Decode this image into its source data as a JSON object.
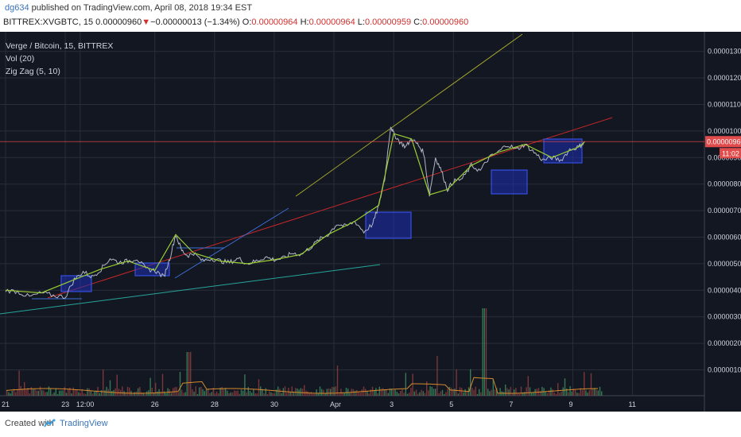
{
  "header": {
    "user": "dg634",
    "published": "published on TradingView.com, April 08, 2018 19:34 EST",
    "symbol": "BITTREX:XVGBTC, 15",
    "last": "0.00000960",
    "change_arrow": "▼",
    "change": "−0.00000013 (−1.34%)",
    "o_label": "O:",
    "o_value": "0.00000964",
    "h_label": "H:",
    "h_value": "0.00000964",
    "l_label": "L:",
    "l_value": "0.00000959",
    "c_label": "C:",
    "c_value": "0.00000960"
  },
  "legend": {
    "title": "Verge / Bitcoin, 15, BITTREX",
    "vol": "Vol (20)",
    "zigzag": "Zig Zag (5, 10)"
  },
  "price_tag": "0.00000960",
  "time_tag": "11:02",
  "footer": {
    "created": "Created with",
    "brand": "TradingView"
  },
  "colors": {
    "background": "#131722",
    "grid": "#2a2e39",
    "price_line": "#b0b6c5",
    "zigzag": "#9acd32",
    "box": "#1e2fb5",
    "price_tag": "#e24b4b",
    "volume_up": "#3d8b5e",
    "volume_down": "#8b3d3d",
    "volume_ma": "#d48a2c"
  },
  "chart_data": {
    "type": "line",
    "price_axis_labels": [
      "0.00001300",
      "0.00001200",
      "0.00001100",
      "0.00001000",
      "0.00000900",
      "0.00000800",
      "0.00000700",
      "0.00000600",
      "0.00000500",
      "0.00000400",
      "0.00000300",
      "0.00000200",
      "0.00000100"
    ],
    "price_axis_values": [
      1300,
      1200,
      1100,
      1000,
      900,
      800,
      700,
      600,
      500,
      400,
      300,
      200,
      100
    ],
    "price_axis_unit": "BTC × 1e-8",
    "time_axis_labels": [
      "21",
      "23",
      "12:00",
      "26",
      "28",
      "30",
      "Apr",
      "3",
      "5",
      "7",
      "9",
      "11"
    ],
    "ylim": [
      0,
      1350
    ],
    "x_range_days": [
      21,
      41
    ],
    "time_axis_days": [
      21,
      23,
      23.5,
      26,
      28,
      30,
      32,
      34,
      36,
      38,
      40,
      42
    ],
    "series": [
      {
        "values_x": [
          21.0,
          21.4,
          21.8,
          22.2,
          22.6,
          23.0,
          23.3,
          23.6,
          23.9,
          24.2,
          24.5,
          24.8,
          25.1,
          25.4,
          25.7,
          26.0,
          26.3,
          26.5,
          26.7,
          26.9,
          27.1,
          27.3,
          27.6,
          27.9,
          28.2,
          28.5,
          28.8,
          29.1,
          29.4,
          29.7,
          30.0,
          30.3,
          30.6,
          30.9,
          31.2,
          31.5,
          31.8,
          32.1,
          32.4,
          32.7,
          33.0,
          33.3,
          33.5,
          33.7,
          33.9,
          34.0,
          34.2,
          34.4,
          34.6,
          34.8,
          35.0,
          35.2,
          35.4,
          35.6,
          35.8,
          36.0,
          36.3,
          36.6,
          36.9,
          37.2,
          37.5,
          37.8,
          38.1,
          38.4,
          38.7,
          39.0,
          39.3,
          39.6,
          39.9,
          40.2,
          40.4
        ],
        "values_y": [
          400,
          395,
          375,
          390,
          380,
          375,
          440,
          470,
          450,
          480,
          520,
          505,
          510,
          520,
          480,
          475,
          450,
          520,
          610,
          550,
          530,
          540,
          510,
          520,
          510,
          505,
          520,
          500,
          510,
          525,
          515,
          520,
          540,
          535,
          560,
          590,
          610,
          650,
          640,
          660,
          620,
          650,
          720,
          820,
          1020,
          990,
          960,
          940,
          970,
          950,
          920,
          760,
          900,
          850,
          780,
          810,
          820,
          870,
          850,
          900,
          920,
          950,
          930,
          950,
          920,
          890,
          900,
          890,
          930,
          940,
          960
        ]
      }
    ]
  }
}
